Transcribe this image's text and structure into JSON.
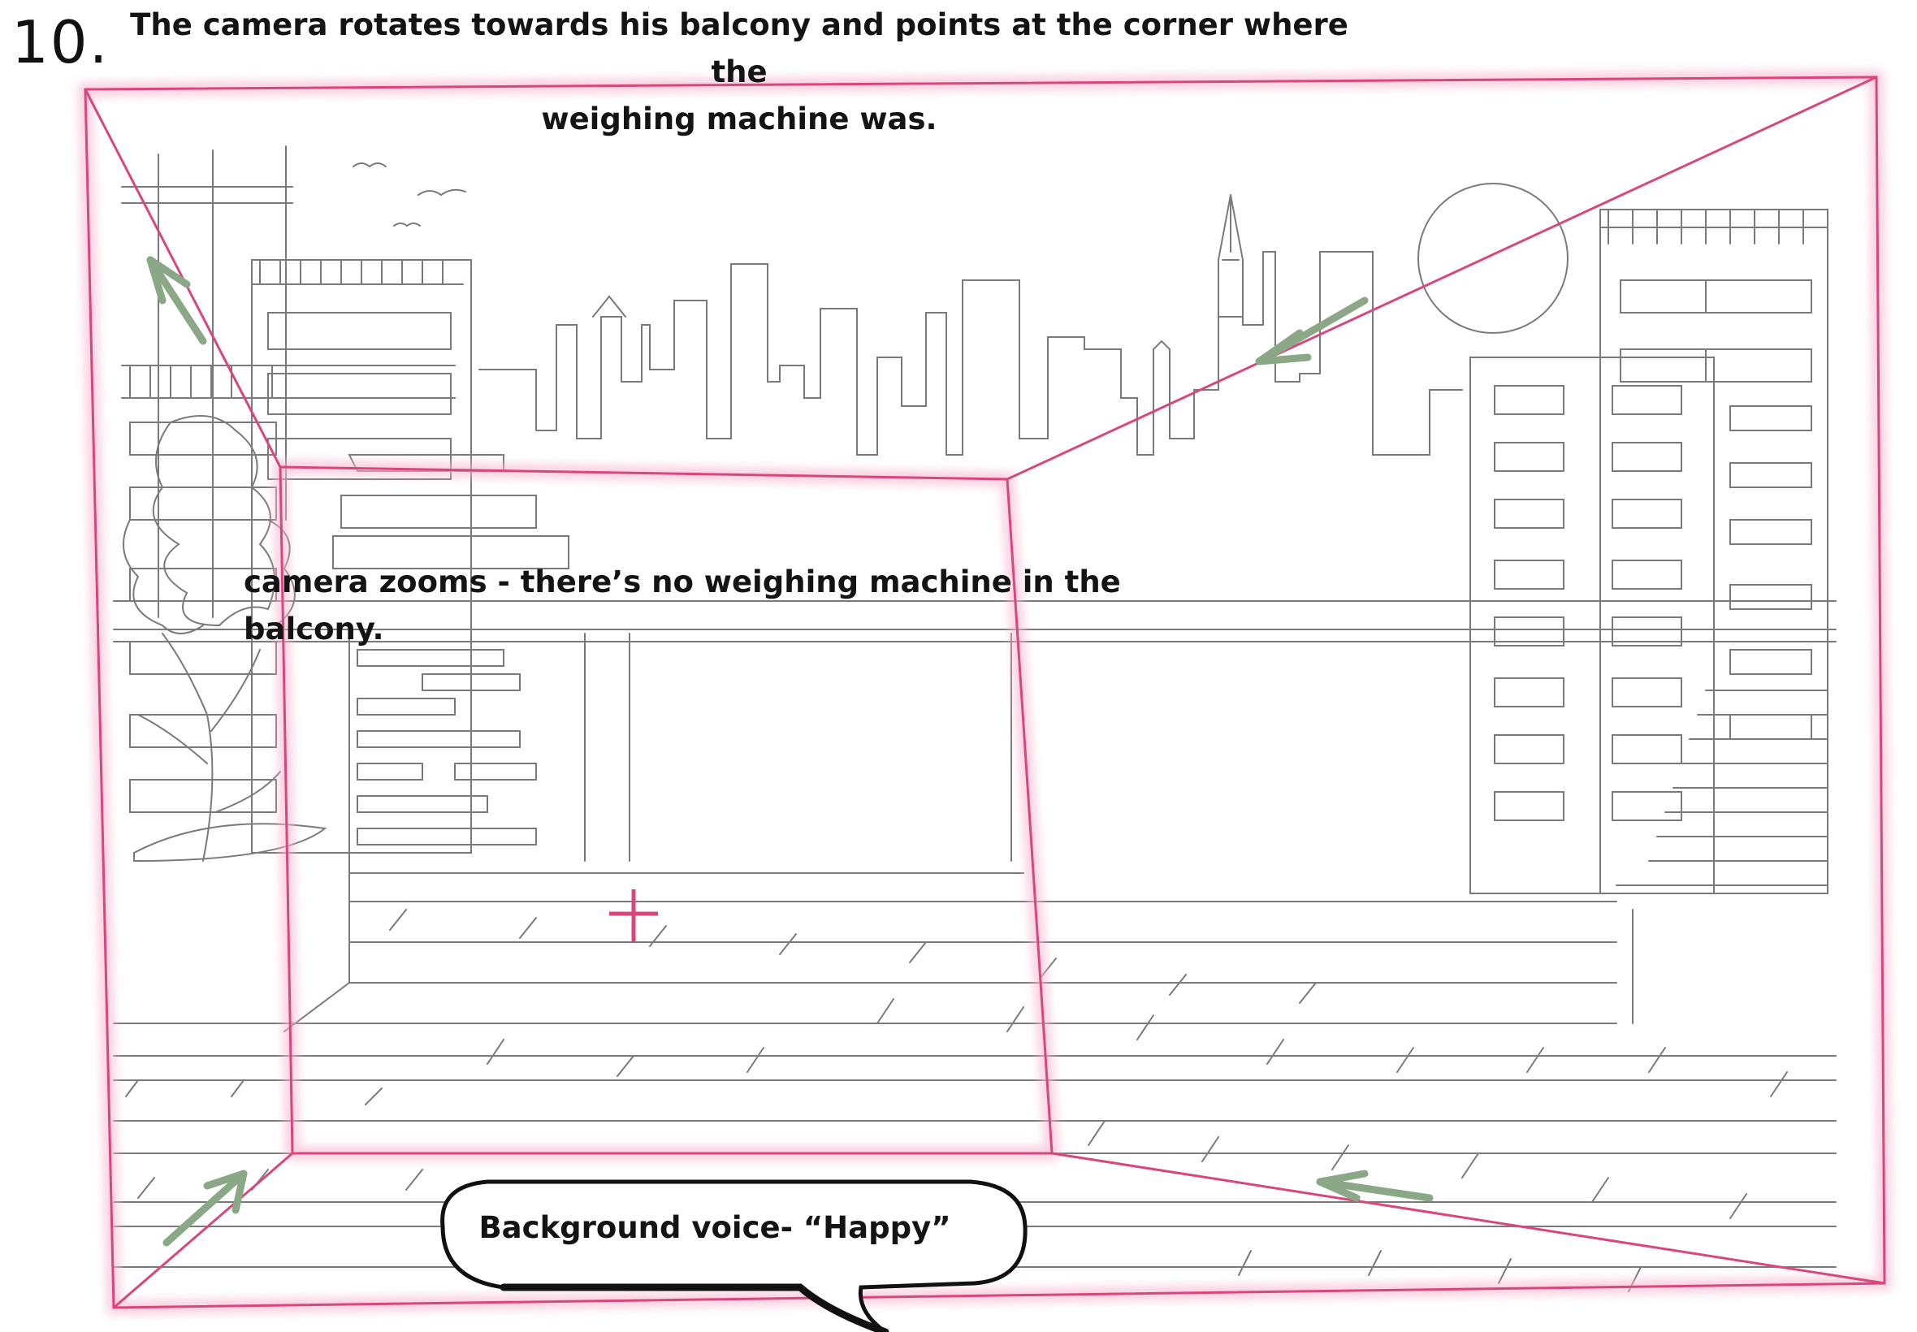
{
  "panel": {
    "number": "10.",
    "title_caption": "The camera rotates towards his balcony and points at the corner where the weighing machine was.",
    "title_line_1": "The camera rotates towards his balcony and points at the corner where the",
    "title_line_2": "weighing machine was.",
    "zoom_caption": "camera zooms - there’s no weighing machine in the balcony.",
    "speech_bubble": "Background voice- “Happy”"
  },
  "colors": {
    "frame": "#d9467e",
    "frame_glow": "#f7b6cf",
    "arrow": "#8aa886",
    "sketch": "#6b6b6b",
    "ink": "#141414"
  }
}
